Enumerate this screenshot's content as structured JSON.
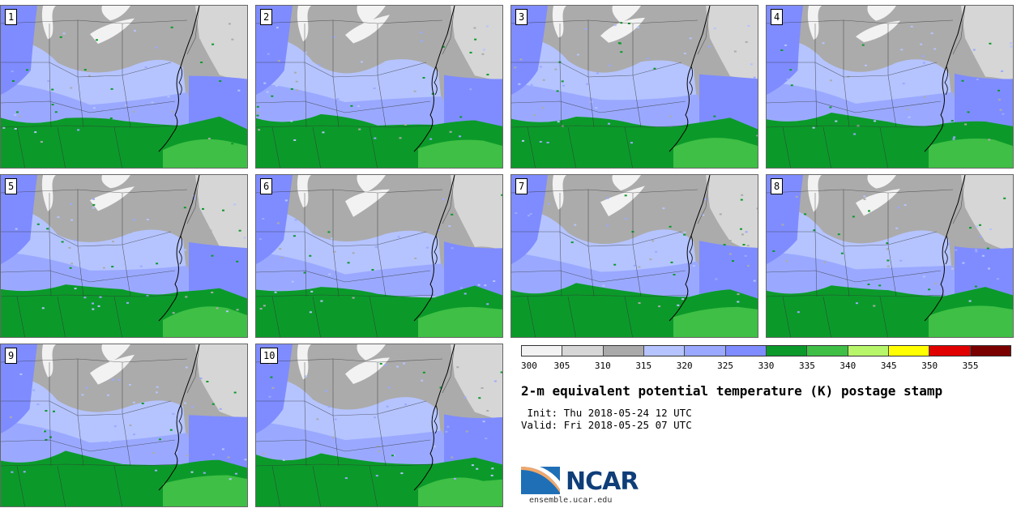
{
  "panels": [
    {
      "label": "1"
    },
    {
      "label": "2"
    },
    {
      "label": "3"
    },
    {
      "label": "4"
    },
    {
      "label": "5"
    },
    {
      "label": "6"
    },
    {
      "label": "7"
    },
    {
      "label": "8"
    },
    {
      "label": "9"
    },
    {
      "label": "10"
    }
  ],
  "colorbar": {
    "bins": [
      {
        "color": "#f2f2f2"
      },
      {
        "color": "#d6d6d6"
      },
      {
        "color": "#a9a9a9"
      },
      {
        "color": "#b5c4ff"
      },
      {
        "color": "#9aa9ff"
      },
      {
        "color": "#7f8cff"
      },
      {
        "color": "#0b9a2a"
      },
      {
        "color": "#3fbf45"
      },
      {
        "color": "#b7f56a"
      },
      {
        "color": "#ffff00"
      },
      {
        "color": "#e00000"
      },
      {
        "color": "#7a0000"
      }
    ],
    "tick_labels": [
      "300",
      "305",
      "310",
      "315",
      "320",
      "325",
      "330",
      "335",
      "340",
      "345",
      "350",
      "355"
    ]
  },
  "title": "2-m equivalent potential temperature (K) postage stamp",
  "init_text": " Init: Thu 2018-05-24 12 UTC",
  "valid_text": "Valid: Fri 2018-05-25 07 UTC",
  "logo": {
    "name": "NCAR",
    "url": "ensemble.ucar.edu"
  },
  "map_colors": {
    "cold": "#ababab",
    "cool": "#d6d6d6",
    "lightblue": "#b5c4ff",
    "midblue": "#9aa9ff",
    "blue": "#7f8cff",
    "green": "#0b9a2a",
    "lightgreen": "#3fbf45",
    "white": "#f2f2f2"
  }
}
